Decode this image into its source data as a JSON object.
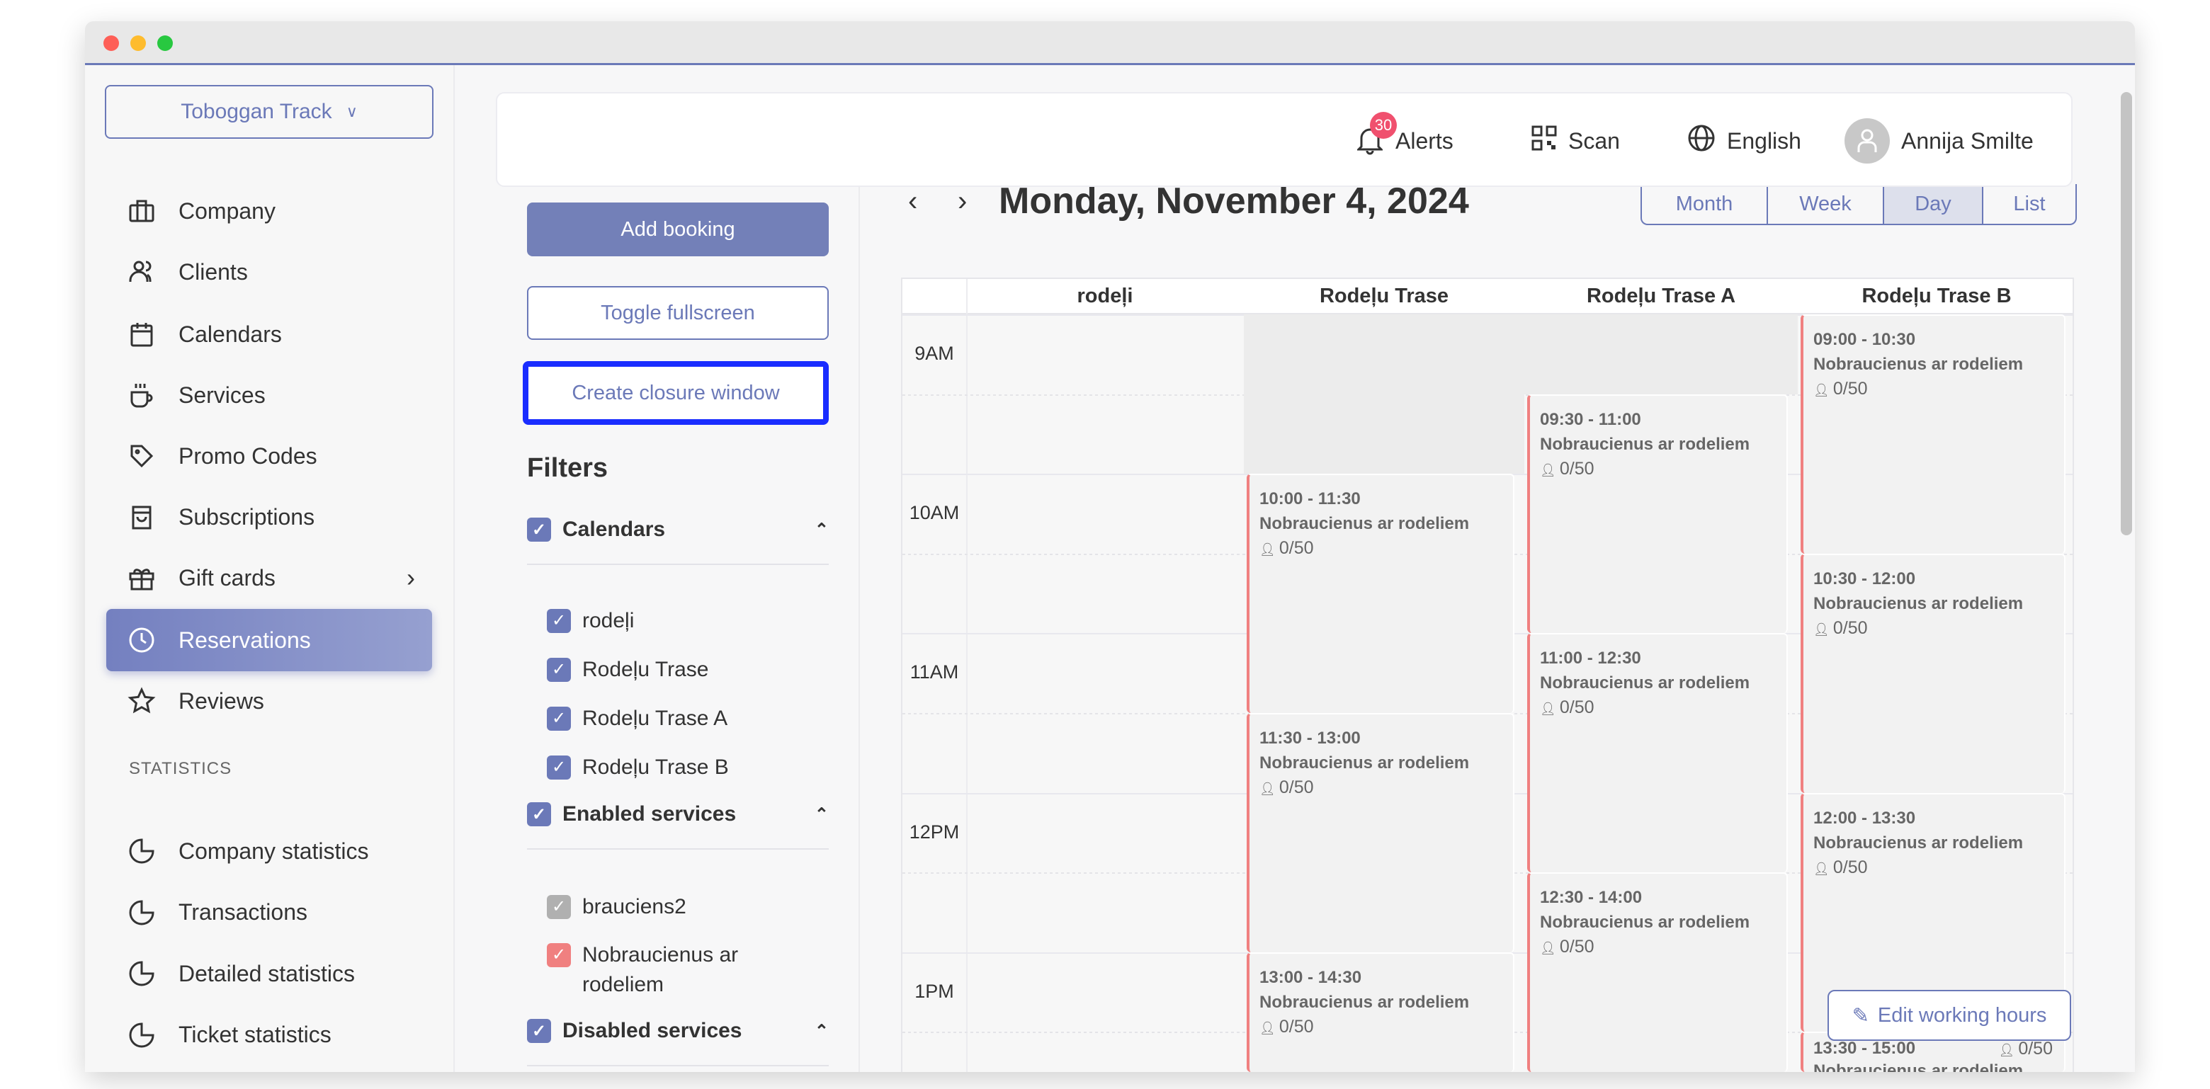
{
  "location_selector": {
    "label": "Toboggan Track"
  },
  "sidebar": {
    "items": [
      {
        "label": "Company",
        "icon": "briefcase-icon"
      },
      {
        "label": "Clients",
        "icon": "users-icon"
      },
      {
        "label": "Calendars",
        "icon": "calendar-icon"
      },
      {
        "label": "Services",
        "icon": "cup-icon"
      },
      {
        "label": "Promo Codes",
        "icon": "tag-icon"
      },
      {
        "label": "Subscriptions",
        "icon": "bag-icon"
      },
      {
        "label": "Gift cards",
        "icon": "gift-icon",
        "has_submenu": true
      },
      {
        "label": "Reservations",
        "icon": "clock-icon",
        "active": true
      },
      {
        "label": "Reviews",
        "icon": "star-icon"
      }
    ],
    "statistics_heading": "STATISTICS",
    "statistics_items": [
      {
        "label": "Company statistics"
      },
      {
        "label": "Transactions"
      },
      {
        "label": "Detailed statistics"
      },
      {
        "label": "Ticket statistics"
      }
    ]
  },
  "header": {
    "alerts": {
      "label": "Alerts",
      "count": "30"
    },
    "scan": {
      "label": "Scan"
    },
    "language": {
      "label": "English"
    },
    "user": {
      "name": "Annija Smilte"
    }
  },
  "actions": {
    "add_booking": "Add booking",
    "toggle_fullscreen": "Toggle fullscreen",
    "create_closure_window": "Create closure window"
  },
  "filters": {
    "title": "Filters",
    "calendars": {
      "label": "Calendars",
      "items": [
        "rodeļi",
        "Rodeļu Trase",
        "Rodeļu Trase A",
        "Rodeļu Trase B"
      ]
    },
    "enabled_services": {
      "label": "Enabled services",
      "items": [
        {
          "label": "brauciens2",
          "color": "#b0b0b0"
        },
        {
          "label": "Nobraucienus ar rodeliem",
          "color": "#f08080"
        }
      ]
    },
    "disabled_services": {
      "label": "Disabled services"
    }
  },
  "calendar": {
    "date_title": "Monday, November 4, 2024",
    "views": [
      "Month",
      "Week",
      "Day",
      "List"
    ],
    "active_view": "Day",
    "columns": [
      "rodeļi",
      "Rodeļu Trase",
      "Rodeļu Trase A",
      "Rodeļu Trase B"
    ],
    "time_labels": [
      "9AM",
      "10AM",
      "11AM",
      "12PM",
      "1PM"
    ],
    "closed": [
      {
        "column": 1,
        "start": "09:00",
        "end": "10:00"
      },
      {
        "column": 2,
        "start": "09:00",
        "end": "09:30"
      }
    ],
    "events": [
      {
        "column": 1,
        "time": "10:00 - 11:30",
        "title": "Nobraucienus ar rodeliem",
        "capacity": "0/50"
      },
      {
        "column": 1,
        "time": "11:30 - 13:00",
        "title": "Nobraucienus ar rodeliem",
        "capacity": "0/50"
      },
      {
        "column": 1,
        "time": "13:00 - 14:30",
        "title": "Nobraucienus ar rodeliem",
        "capacity": "0/50"
      },
      {
        "column": 2,
        "time": "09:30 - 11:00",
        "title": "Nobraucienus ar rodeliem",
        "capacity": "0/50"
      },
      {
        "column": 2,
        "time": "11:00 - 12:30",
        "title": "Nobraucienus ar rodeliem",
        "capacity": "0/50"
      },
      {
        "column": 2,
        "time": "12:30 - 14:00",
        "title": "Nobraucienus ar rodeliem",
        "capacity": "0/50"
      },
      {
        "column": 3,
        "time": "09:00 - 10:30",
        "title": "Nobraucienus ar rodeliem",
        "capacity": "0/50"
      },
      {
        "column": 3,
        "time": "10:30 - 12:00",
        "title": "Nobraucienus ar rodeliem",
        "capacity": "0/50"
      },
      {
        "column": 3,
        "time": "12:00 - 13:30",
        "title": "Nobraucienus ar rodeliem",
        "capacity": "0/50"
      },
      {
        "column": 3,
        "time": "13:30 - 15:00",
        "title": "Nobraucienus ar rodeliem",
        "capacity": "0/50"
      }
    ],
    "edit_working_hours": "Edit working hours",
    "event_color": "#f08080"
  },
  "colors": {
    "accent": "#6b79b8",
    "focus_outline": "#1a2dff",
    "badge": "#f0506e"
  }
}
